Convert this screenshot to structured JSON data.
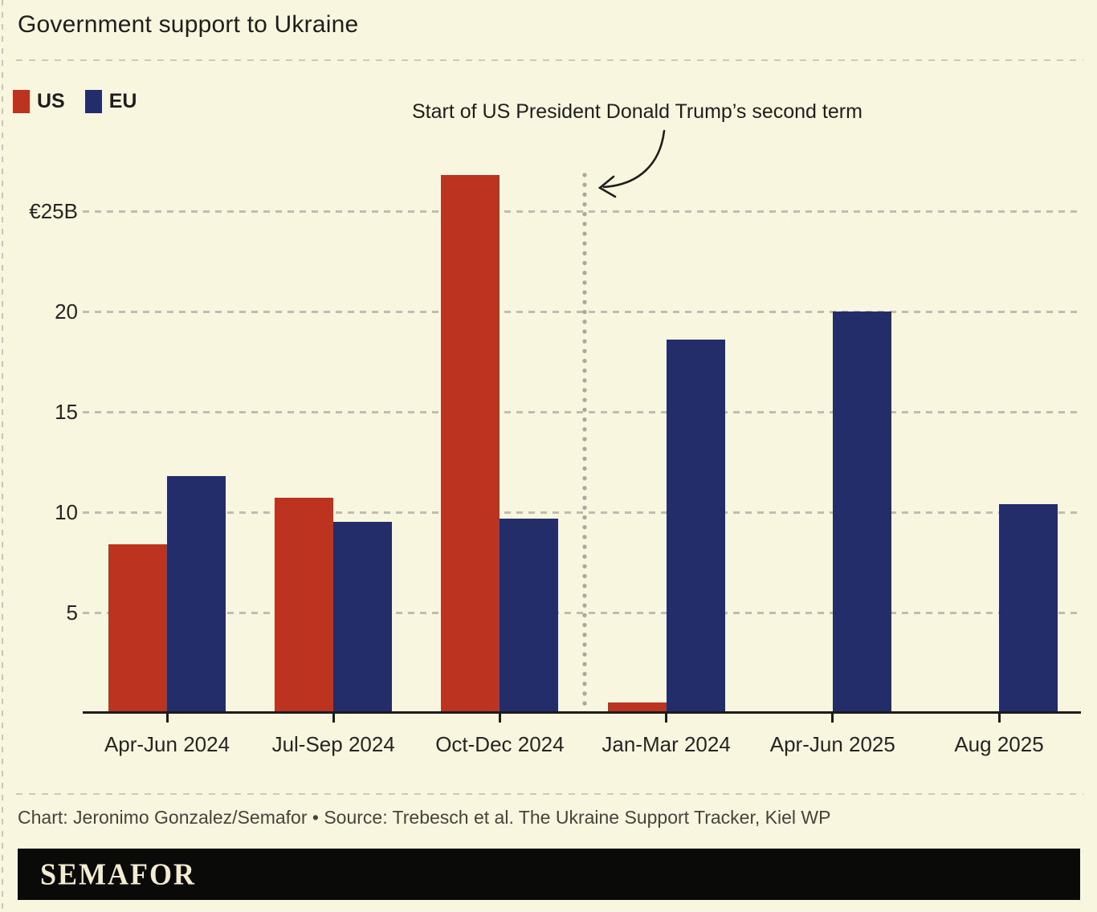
{
  "title": "Government support to Ukraine",
  "colors": {
    "background": "#f9f6df",
    "us_red": "#bc3420",
    "eu_navy": "#232d69",
    "gridline": "#bdbdb1",
    "axis": "#1c1c1a",
    "divider_dots": "#a8a89d",
    "logo_bar": "#0a0a08",
    "logo_text": "#f3ecd0"
  },
  "legend": [
    {
      "label": "US",
      "color": "#bc3420"
    },
    {
      "label": "EU",
      "color": "#232d69"
    }
  ],
  "annotation": {
    "text": "Start of US President Donald Trump’s second term",
    "points_to": "dotted divider between Oct-Dec 2024 and Jan-Mar 2024"
  },
  "chart_data": {
    "type": "bar",
    "title": "Government support to Ukraine",
    "categories": [
      "Apr-Jun 2024",
      "Jul-Sep 2024",
      "Oct-Dec 2024",
      "Jan-Mar 2024",
      "Apr-Jun 2025",
      "Aug 2025"
    ],
    "series": [
      {
        "name": "US",
        "color": "#bc3420",
        "values": [
          8.4,
          10.7,
          26.8,
          0.5,
          0,
          0
        ]
      },
      {
        "name": "EU",
        "color": "#232d69",
        "values": [
          11.8,
          9.5,
          9.7,
          18.6,
          20.0,
          10.4
        ]
      }
    ],
    "y_ticks": [
      {
        "value": 25,
        "label": "€25B"
      },
      {
        "value": 20,
        "label": "20"
      },
      {
        "value": 15,
        "label": "15"
      },
      {
        "value": 10,
        "label": "10"
      },
      {
        "value": 5,
        "label": "5"
      }
    ],
    "ylim": [
      0,
      27.5
    ],
    "xlabel": "",
    "ylabel": "€B",
    "grid": "horizontal dashed",
    "legend_position": "top-left",
    "divider_after_category": "Oct-Dec 2024"
  },
  "footer": {
    "credit": "Chart: Jeronimo Gonzalez/Semafor • Source: Trebesch et al. The Ukraine Support Tracker, Kiel WP"
  },
  "logo": {
    "text": "SEMAFOR"
  }
}
